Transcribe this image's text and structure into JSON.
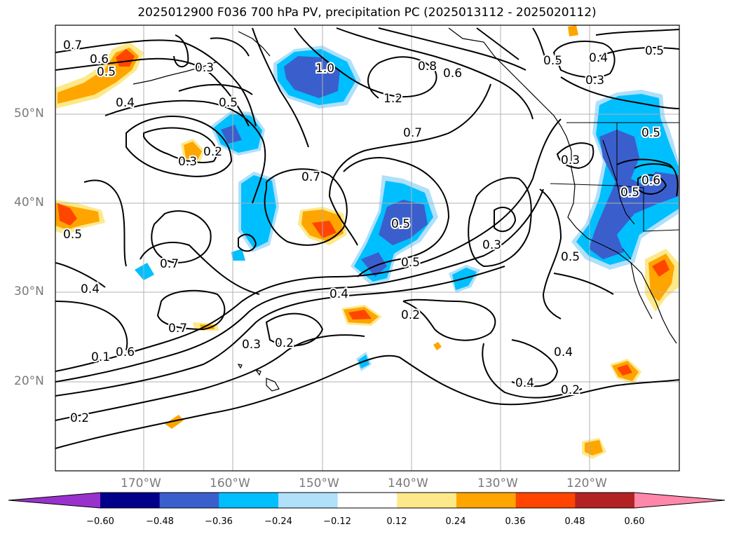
{
  "title": "2025012900 F036 700 hPa PV, precipitation PC (2025013112 - 2025020112)",
  "axes": {
    "lat_labels": [
      "50°N",
      "40°N",
      "30°N",
      "20°N"
    ],
    "lon_labels": [
      "170°W",
      "160°W",
      "150°W",
      "140°W",
      "130°W",
      "120°W"
    ]
  },
  "contour_labels": [
    "0.7",
    "0.6",
    "0.5",
    "0.4",
    "0.3",
    "1.0",
    "1.2",
    "0.8",
    "0.6",
    "0.5",
    "0.4",
    "0.5",
    "0.3",
    "0.5",
    "0.2",
    "0.3",
    "0.7",
    "0.7",
    "0.3",
    "0.5",
    "0.5",
    "0.7",
    "0.5",
    "0.5",
    "0.4",
    "0.4",
    "0.7",
    "0.2",
    "0.3",
    "0.2",
    "0.1",
    "0.6",
    "0.2",
    "0.4",
    "0.2",
    "0.4",
    "0.5",
    "0.3",
    "0.5",
    "0.6"
  ],
  "colorbar": {
    "ticks": [
      "−0.60",
      "−0.48",
      "−0.36",
      "−0.24",
      "−0.12",
      "0.12",
      "0.24",
      "0.36",
      "0.48",
      "0.60"
    ],
    "colors": [
      "#9932cc",
      "#00008b",
      "#3a5fcd",
      "#00bfff",
      "#b0e0fa",
      "#ffffff",
      "#fde98a",
      "#ffa500",
      "#ff4500",
      "#b22222",
      "#ff88aa"
    ]
  }
}
